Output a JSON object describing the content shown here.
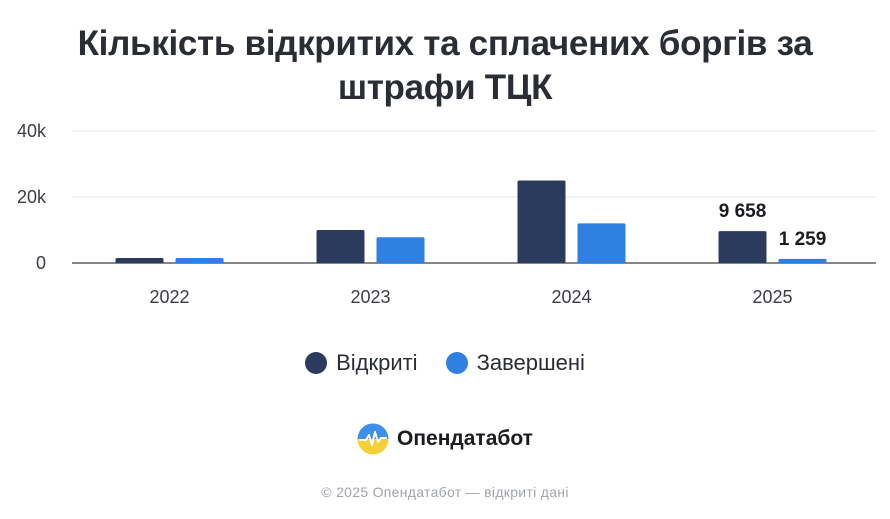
{
  "title_line1": "Кількість відкритих та сплачених боргів за",
  "title_line2": "штрафи ТЦК",
  "chart_data": {
    "type": "bar",
    "title": "Кількість відкритих та сплачених боргів за штрафи ТЦК",
    "categories": [
      "2022",
      "2023",
      "2024",
      "2025"
    ],
    "series": [
      {
        "name": "Відкриті",
        "color": "#2b3b5e",
        "values": [
          1500,
          10000,
          25000,
          9658
        ]
      },
      {
        "name": "Завершені",
        "color": "#2f80e0",
        "values": [
          1500,
          7800,
          12000,
          1259
        ]
      }
    ],
    "ylim": [
      0,
      40000
    ],
    "yticks": [
      0,
      20000,
      40000
    ],
    "ytick_labels": [
      "0",
      "20k",
      "40k"
    ],
    "data_labels": [
      {
        "series": 0,
        "category": "2025",
        "text": "9 658"
      },
      {
        "series": 1,
        "category": "2025",
        "text": "1 259"
      }
    ],
    "grid": true,
    "legend_position": "bottom"
  },
  "legend": [
    {
      "label": "Відкриті",
      "color": "#2b3b5e"
    },
    {
      "label": "Завершені",
      "color": "#2f80e0"
    }
  ],
  "brand": {
    "name": "Опендатабот",
    "logo": "opendatabot-logo-icon"
  },
  "footer": "© 2025 Опендатабот — відкриті дані"
}
